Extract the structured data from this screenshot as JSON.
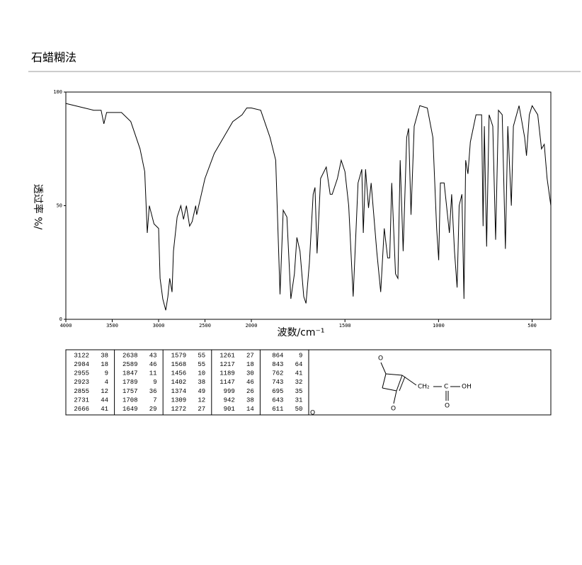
{
  "chart_data": {
    "type": "line",
    "title": "石蜡糊法",
    "ylabel": "透过率 %/",
    "xlabel": "波数/cm⁻¹",
    "xlim": [
      4000,
      400
    ],
    "x_scale_break": 2000,
    "ylim": [
      0,
      100
    ],
    "xticks": [
      4000,
      3500,
      3000,
      2500,
      2000,
      1500,
      1000,
      500
    ],
    "yticks": [
      0,
      50,
      100
    ],
    "series": [
      {
        "color": "#000000",
        "x": [
          4000,
          3800,
          3700,
          3620,
          3590,
          3560,
          3400,
          3300,
          3200,
          3150,
          3122,
          3100,
          3050,
          3000,
          2984,
          2955,
          2923,
          2900,
          2880,
          2855,
          2840,
          2800,
          2760,
          2731,
          2700,
          2666,
          2638,
          2600,
          2589,
          2500,
          2400,
          2300,
          2200,
          2100,
          2050,
          2000,
          1950,
          1900,
          1870,
          1847,
          1830,
          1810,
          1789,
          1770,
          1757,
          1740,
          1720,
          1708,
          1690,
          1670,
          1660,
          1649,
          1630,
          1600,
          1579,
          1568,
          1540,
          1520,
          1500,
          1480,
          1456,
          1430,
          1410,
          1402,
          1390,
          1374,
          1360,
          1330,
          1309,
          1290,
          1272,
          1261,
          1250,
          1230,
          1217,
          1205,
          1189,
          1170,
          1160,
          1147,
          1130,
          1100,
          1060,
          1030,
          1010,
          999,
          990,
          970,
          942,
          930,
          915,
          901,
          890,
          875,
          864,
          855,
          843,
          830,
          800,
          770,
          762,
          755,
          743,
          730,
          710,
          695,
          680,
          660,
          643,
          630,
          611,
          600,
          570,
          540,
          530,
          515,
          500,
          470,
          450,
          435,
          420,
          400
        ],
        "values": [
          95,
          93,
          92,
          92,
          86,
          91,
          91,
          87,
          75,
          65,
          38,
          50,
          42,
          40,
          18,
          9,
          4,
          10,
          18,
          12,
          30,
          45,
          50,
          44,
          50,
          41,
          43,
          50,
          46,
          62,
          73,
          80,
          87,
          90,
          93,
          93,
          92,
          80,
          70,
          11,
          48,
          45,
          9,
          20,
          36,
          30,
          10,
          7,
          25,
          55,
          58,
          29,
          62,
          67,
          55,
          55,
          62,
          70,
          65,
          50,
          10,
          60,
          66,
          38,
          66,
          49,
          60,
          30,
          12,
          40,
          27,
          27,
          60,
          20,
          18,
          70,
          30,
          80,
          84,
          46,
          85,
          94,
          93,
          80,
          40,
          26,
          60,
          60,
          38,
          55,
          30,
          14,
          50,
          55,
          9,
          70,
          64,
          78,
          90,
          90,
          41,
          85,
          32,
          90,
          85,
          35,
          92,
          90,
          31,
          85,
          50,
          85,
          94,
          80,
          72,
          90,
          94,
          90,
          75,
          77,
          62,
          50
        ]
      }
    ],
    "peak_table": [
      {
        "wavenumbers": [
          3122,
          2984,
          2955,
          2923,
          2855,
          2731,
          2666
        ],
        "transmittance": [
          38,
          18,
          9,
          4,
          12,
          44,
          41
        ]
      },
      {
        "wavenumbers": [
          2638,
          2589,
          1847,
          1789,
          1757,
          1708,
          1649
        ],
        "transmittance": [
          43,
          46,
          11,
          9,
          36,
          7,
          29
        ]
      },
      {
        "wavenumbers": [
          1579,
          1568,
          1456,
          1402,
          1374,
          1309,
          1272
        ],
        "transmittance": [
          55,
          55,
          10,
          38,
          49,
          12,
          27
        ]
      },
      {
        "wavenumbers": [
          1261,
          1217,
          1189,
          1147,
          999,
          942,
          901
        ],
        "transmittance": [
          27,
          18,
          30,
          46,
          26,
          38,
          14
        ]
      },
      {
        "wavenumbers": [
          864,
          843,
          762,
          743,
          695,
          643,
          611
        ],
        "transmittance": [
          9,
          64,
          41,
          32,
          35,
          31,
          50
        ]
      }
    ],
    "structure": {
      "labels": [
        "O",
        "O",
        "CH₂",
        "C",
        "OH",
        "O"
      ],
      "corner_mark": "Q"
    }
  }
}
